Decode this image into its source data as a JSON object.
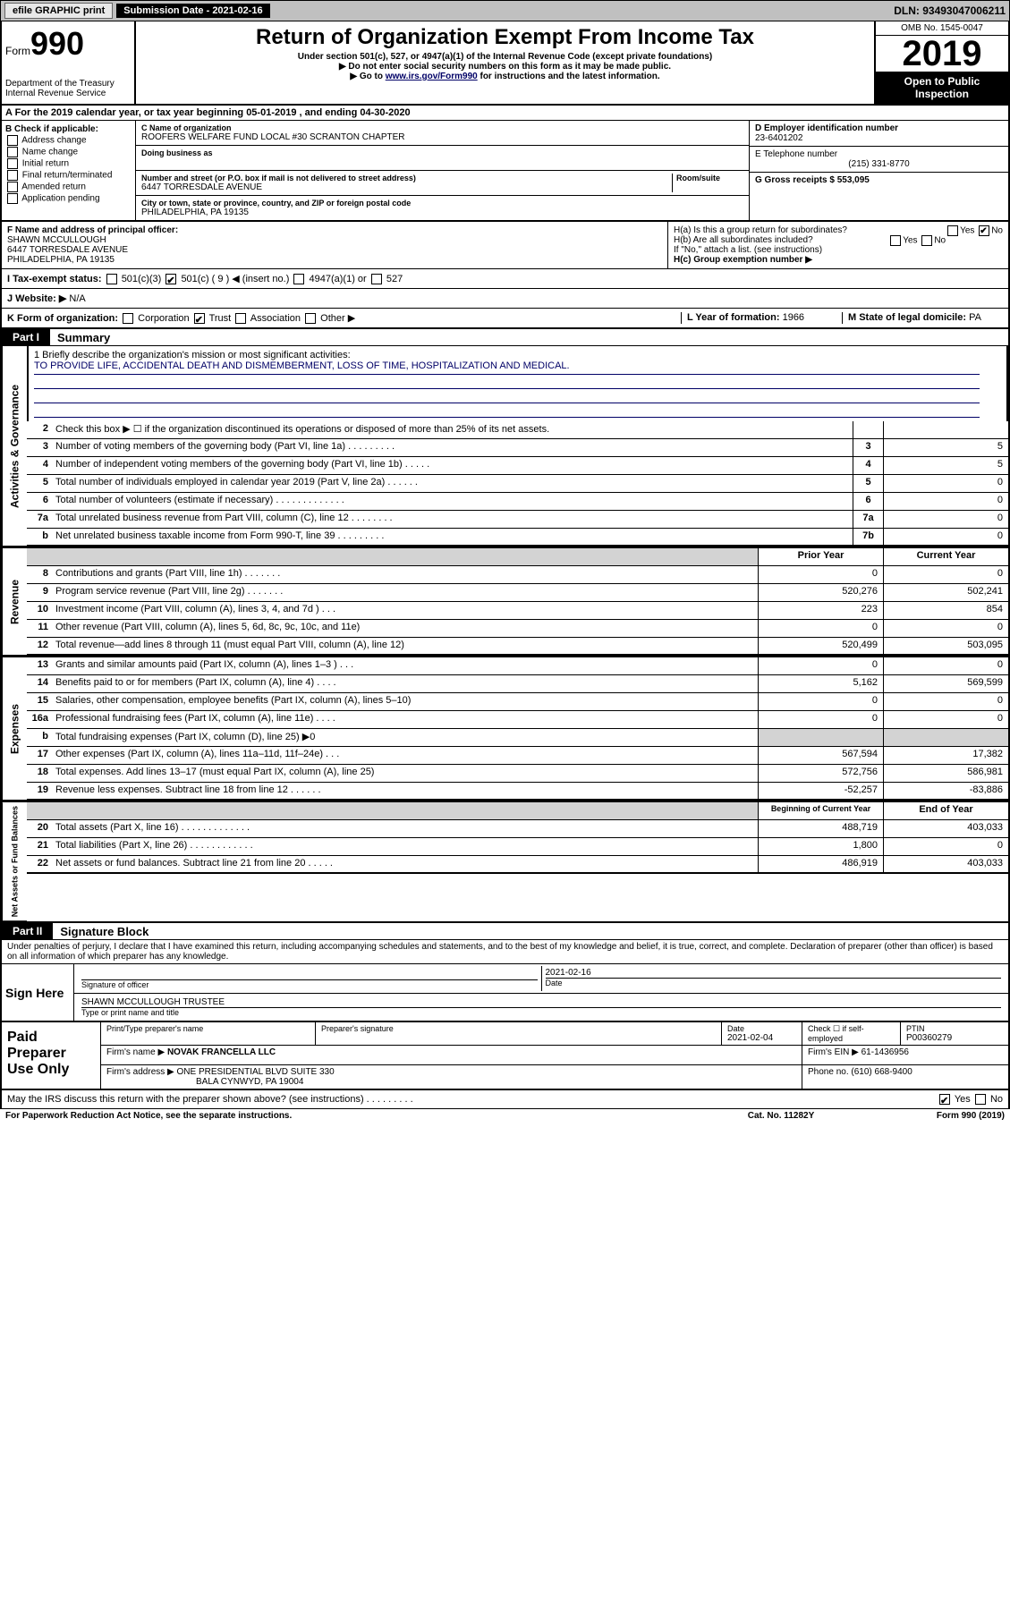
{
  "top_bar": {
    "efile_label": "efile GRAPHIC print",
    "sub_label": "Submission Date - 2021-02-16",
    "dln": "DLN: 93493047006211"
  },
  "header": {
    "form_word": "Form",
    "form_num": "990",
    "dept": "Department of the Treasury",
    "irs": "Internal Revenue Service",
    "title": "Return of Organization Exempt From Income Tax",
    "sub1": "Under section 501(c), 527, or 4947(a)(1) of the Internal Revenue Code (except private foundations)",
    "sub2": "▶ Do not enter social security numbers on this form as it may be made public.",
    "sub3_pre": "▶ Go to ",
    "sub3_link": "www.irs.gov/Form990",
    "sub3_post": " for instructions and the latest information.",
    "omb": "OMB No. 1545-0047",
    "year": "2019",
    "open1": "Open to Public",
    "open2": "Inspection"
  },
  "row_a": {
    "text": "A For the 2019 calendar year, or tax year beginning 05-01-2019    , and ending 04-30-2020"
  },
  "col_b": {
    "head": "B Check if applicable:",
    "opts": [
      "Address change",
      "Name change",
      "Initial return",
      "Final return/terminated",
      "Amended return",
      "Application pending"
    ]
  },
  "col_c": {
    "name_lbl": "C Name of organization",
    "name": "ROOFERS WELFARE FUND LOCAL #30 SCRANTON CHAPTER",
    "dba_lbl": "Doing business as",
    "addr_lbl": "Number and street (or P.O. box if mail is not delivered to street address)",
    "room_lbl": "Room/suite",
    "addr": "6447 TORRESDALE AVENUE",
    "city_lbl": "City or town, state or province, country, and ZIP or foreign postal code",
    "city": "PHILADELPHIA, PA  19135"
  },
  "col_d": {
    "ein_lbl": "D Employer identification number",
    "ein": "23-6401202",
    "phone_lbl": "E Telephone number",
    "phone": "(215) 331-8770",
    "gross_lbl": "G Gross receipts $ 553,095"
  },
  "row_f": {
    "lbl": "F  Name and address of principal officer:",
    "name": "SHAWN MCCULLOUGH",
    "addr1": "6447 TORRESDALE AVENUE",
    "addr2": "PHILADELPHIA, PA  19135"
  },
  "row_h": {
    "ha": "H(a)  Is this a group return for subordinates?",
    "hb": "H(b)  Are all subordinates included?",
    "hb2": "If \"No,\" attach a list. (see instructions)",
    "hc": "H(c)  Group exemption number ▶"
  },
  "row_i": {
    "lbl": "I   Tax-exempt status:",
    "c3": "501(c)(3)",
    "c9": "501(c) ( 9 ) ◀ (insert no.)",
    "a1": "4947(a)(1) or",
    "527": "527"
  },
  "row_j": {
    "lbl": "J   Website: ▶",
    "val": "N/A"
  },
  "row_k": {
    "lbl": "K Form of organization:",
    "corp": "Corporation",
    "trust": "Trust",
    "assoc": "Association",
    "other": "Other ▶",
    "l_lbl": "L Year of formation:",
    "l_val": "1966",
    "m_lbl": "M State of legal domicile:",
    "m_val": "PA"
  },
  "part1": {
    "tab": "Part I",
    "title": "Summary"
  },
  "mission": {
    "q": "1  Briefly describe the organization's mission or most significant activities:",
    "a": "TO PROVIDE LIFE, ACCIDENTAL DEATH AND DISMEMBERMENT, LOSS OF TIME, HOSPITALIZATION AND MEDICAL."
  },
  "gov_rows": [
    {
      "n": "2",
      "d": "Check this box ▶ ☐  if the organization discontinued its operations or disposed of more than 25% of its net assets.",
      "c": "",
      "v": ""
    },
    {
      "n": "3",
      "d": "Number of voting members of the governing body (Part VI, line 1a)   .    .    .    .    .    .    .    .    .",
      "c": "3",
      "v": "5"
    },
    {
      "n": "4",
      "d": "Number of independent voting members of the governing body (Part VI, line 1b)   .    .    .    .    .",
      "c": "4",
      "v": "5"
    },
    {
      "n": "5",
      "d": "Total number of individuals employed in calendar year 2019 (Part V, line 2a)   .    .    .    .    .    .",
      "c": "5",
      "v": "0"
    },
    {
      "n": "6",
      "d": "Total number of volunteers (estimate if necessary)   .    .    .    .    .    .    .    .    .    .    .    .    .",
      "c": "6",
      "v": "0"
    },
    {
      "n": "7a",
      "d": "Total unrelated business revenue from Part VIII, column (C), line 12   .    .    .    .    .    .    .    .",
      "c": "7a",
      "v": "0"
    },
    {
      "n": "b",
      "d": "Net unrelated business taxable income from Form 990-T, line 39   .    .    .    .    .    .    .    .    .",
      "c": "7b",
      "v": "0"
    }
  ],
  "rev_hdr": {
    "py": "Prior Year",
    "cy": "Current Year"
  },
  "rev_rows": [
    {
      "n": "8",
      "d": "Contributions and grants (Part VIII, line 1h)   .    .    .    .    .    .    .",
      "py": "0",
      "cy": "0"
    },
    {
      "n": "9",
      "d": "Program service revenue (Part VIII, line 2g)   .    .    .    .    .    .    .",
      "py": "520,276",
      "cy": "502,241"
    },
    {
      "n": "10",
      "d": "Investment income (Part VIII, column (A), lines 3, 4, and 7d )   .    .    .",
      "py": "223",
      "cy": "854"
    },
    {
      "n": "11",
      "d": "Other revenue (Part VIII, column (A), lines 5, 6d, 8c, 9c, 10c, and 11e)",
      "py": "0",
      "cy": "0"
    },
    {
      "n": "12",
      "d": "Total revenue—add lines 8 through 11 (must equal Part VIII, column (A), line 12)",
      "py": "520,499",
      "cy": "503,095"
    }
  ],
  "exp_rows": [
    {
      "n": "13",
      "d": "Grants and similar amounts paid (Part IX, column (A), lines 1–3 )   .    .    .",
      "py": "0",
      "cy": "0"
    },
    {
      "n": "14",
      "d": "Benefits paid to or for members (Part IX, column (A), line 4)   .    .    .    .",
      "py": "5,162",
      "cy": "569,599"
    },
    {
      "n": "15",
      "d": "Salaries, other compensation, employee benefits (Part IX, column (A), lines 5–10)",
      "py": "0",
      "cy": "0"
    },
    {
      "n": "16a",
      "d": "Professional fundraising fees (Part IX, column (A), line 11e)   .    .    .    .",
      "py": "0",
      "cy": "0"
    },
    {
      "n": "b",
      "d": "Total fundraising expenses (Part IX, column (D), line 25) ▶0",
      "py": "",
      "cy": "",
      "shaded": true
    },
    {
      "n": "17",
      "d": "Other expenses (Part IX, column (A), lines 11a–11d, 11f–24e)   .    .    .",
      "py": "567,594",
      "cy": "17,382"
    },
    {
      "n": "18",
      "d": "Total expenses. Add lines 13–17 (must equal Part IX, column (A), line 25)",
      "py": "572,756",
      "cy": "586,981"
    },
    {
      "n": "19",
      "d": "Revenue less expenses. Subtract line 18 from line 12   .    .    .    .    .    .",
      "py": "-52,257",
      "cy": "-83,886"
    }
  ],
  "na_hdr": {
    "py": "Beginning of Current Year",
    "cy": "End of Year"
  },
  "na_rows": [
    {
      "n": "20",
      "d": "Total assets (Part X, line 16)   .    .    .    .    .    .    .    .    .    .    .    .    .",
      "py": "488,719",
      "cy": "403,033"
    },
    {
      "n": "21",
      "d": "Total liabilities (Part X, line 26)   .    .    .    .    .    .    .    .    .    .    .    .",
      "py": "1,800",
      "cy": "0"
    },
    {
      "n": "22",
      "d": "Net assets or fund balances. Subtract line 21 from line 20   .    .    .    .    .",
      "py": "486,919",
      "cy": "403,033"
    }
  ],
  "side_labels": {
    "gov": "Activities & Governance",
    "rev": "Revenue",
    "exp": "Expenses",
    "na": "Net Assets or Fund Balances"
  },
  "part2": {
    "tab": "Part II",
    "title": "Signature Block"
  },
  "sig": {
    "pen": "Under penalties of perjury, I declare that I have examined this return, including accompanying schedules and statements, and to the best of my knowledge and belief, it is true, correct, and complete. Declaration of preparer (other than officer) is based on all information of which preparer has any knowledge.",
    "here": "Sign Here",
    "sig_lbl": "Signature of officer",
    "date": "2021-02-16",
    "date_lbl": "Date",
    "name": "SHAWN MCCULLOUGH  TRUSTEE",
    "name_lbl": "Type or print name and title"
  },
  "paid": {
    "left": "Paid Preparer Use Only",
    "h1": "Print/Type preparer's name",
    "h2": "Preparer's signature",
    "h3_lbl": "Date",
    "h3": "2021-02-04",
    "h4_lbl": "Check ☐ if self-employed",
    "h5_lbl": "PTIN",
    "h5": "P00360279",
    "firm_lbl": "Firm's name    ▶",
    "firm": "NOVAK FRANCELLA LLC",
    "ein_lbl": "Firm's EIN ▶",
    "ein": "61-1436956",
    "addr_lbl": "Firm's address ▶",
    "addr1": "ONE PRESIDENTIAL BLVD SUITE 330",
    "addr2": "BALA CYNWYD, PA  19004",
    "ph_lbl": "Phone no.",
    "ph": "(610) 668-9400"
  },
  "discuss": {
    "q": "May the IRS discuss this return with the preparer shown above? (see instructions)   .    .    .    .    .    .    .    .    .",
    "yes": "Yes",
    "no": "No"
  },
  "footer": {
    "pra": "For Paperwork Reduction Act Notice, see the separate instructions.",
    "cat": "Cat. No. 11282Y",
    "form": "Form 990 (2019)"
  },
  "colors": {
    "link": "#000066",
    "shade": "#d3d3d3",
    "topbar": "#c0c0c0"
  }
}
